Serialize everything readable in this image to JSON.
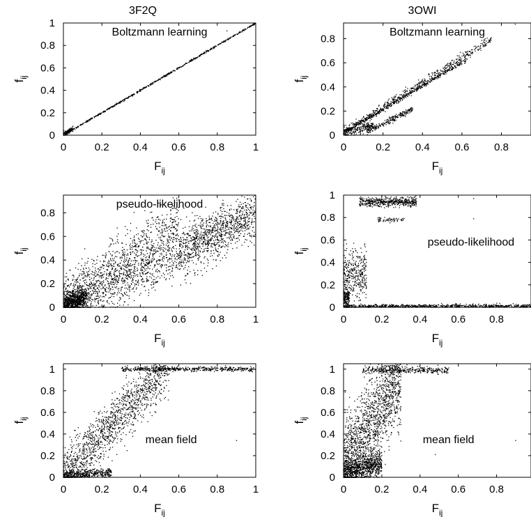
{
  "columns": [
    "3F2Q",
    "3OWI"
  ],
  "chart_data": [
    {
      "type": "scatter",
      "protein": "3F2Q",
      "annotation": "Boltzmann learning",
      "xlabel": "F",
      "xlabel_sub": "ij",
      "ylabel": "f",
      "ylabel_sub": "ij",
      "xlim": [
        0,
        1
      ],
      "ylim": [
        0,
        1
      ],
      "xticks": [
        "0",
        "0.2",
        "0.4",
        "0.6",
        "0.8",
        "1"
      ],
      "yticks": [
        "0",
        "0.2",
        "0.4",
        "0.6",
        "0.8",
        "1"
      ],
      "annotation_anchor": "top-center",
      "clusters": [
        {
          "x": [
            0.0,
            1.0
          ],
          "slope": 1.0,
          "intercept": 0.0,
          "spread": 0.004,
          "n": 600
        },
        {
          "x": [
            0.0,
            0.05
          ],
          "slope": 1.0,
          "intercept": 0.01,
          "spread": 0.012,
          "n": 120
        }
      ],
      "points": [
        [
          0.85,
          0.93
        ]
      ]
    },
    {
      "type": "scatter",
      "protein": "3OWI",
      "annotation": "Boltzmann learning",
      "xlabel": "F",
      "xlabel_sub": "ij",
      "ylabel": "f",
      "ylabel_sub": "ij",
      "xlim": [
        0,
        0.95
      ],
      "ylim": [
        0,
        0.93
      ],
      "xticks": [
        "0",
        "0.2",
        "0.4",
        "0.6",
        "0.8"
      ],
      "yticks": [
        "0",
        "0.2",
        "0.4",
        "0.6",
        "0.8"
      ],
      "annotation_anchor": "top-center",
      "clusters": [
        {
          "x": [
            0.0,
            0.62
          ],
          "slope": 0.97,
          "intercept": 0.02,
          "spread": 0.008,
          "n": 450
        },
        {
          "x": [
            0.0,
            0.75
          ],
          "slope": 1.02,
          "intercept": 0.03,
          "spread": 0.018,
          "n": 500
        },
        {
          "x": [
            0.12,
            0.35
          ],
          "slope": 0.82,
          "intercept": -0.07,
          "spread": 0.012,
          "n": 220
        },
        {
          "x": [
            0.0,
            0.15
          ],
          "slope": 0.4,
          "intercept": 0.02,
          "spread": 0.02,
          "n": 220
        }
      ],
      "points": [
        [
          0.87,
          0.92
        ]
      ]
    },
    {
      "type": "scatter",
      "protein": "3F2Q",
      "annotation": "pseudo-likelihood",
      "xlabel": "F",
      "xlabel_sub": "ij",
      "ylabel": "f",
      "ylabel_sub": "ij",
      "xlim": [
        0,
        1
      ],
      "ylim": [
        0,
        0.95
      ],
      "xticks": [
        "0",
        "0.2",
        "0.4",
        "0.6",
        "0.8",
        "1"
      ],
      "yticks": [
        "0",
        "0.2",
        "0.4",
        "0.6",
        "0.8"
      ],
      "annotation_anchor": "top-center",
      "clusters": [
        {
          "x": [
            0.0,
            1.0
          ],
          "slope": 0.75,
          "intercept": 0.0,
          "spread": 0.1,
          "n": 1400
        },
        {
          "x": [
            0.0,
            0.6
          ],
          "slope": 1.1,
          "intercept": 0.05,
          "spread": 0.12,
          "n": 900
        },
        {
          "x": [
            0.0,
            0.12
          ],
          "slope": 0.6,
          "intercept": 0.02,
          "spread": 0.04,
          "n": 700
        },
        {
          "x": [
            0.6,
            1.0
          ],
          "slope": 0.9,
          "intercept": -0.05,
          "spread": 0.09,
          "n": 500
        }
      ],
      "points": []
    },
    {
      "type": "scatter",
      "protein": "3OWI",
      "annotation": "pseudo-likelihood",
      "xlabel": "F",
      "xlabel_sub": "ij",
      "ylabel": "f",
      "ylabel_sub": "ij",
      "xlim": [
        0,
        0.98
      ],
      "ylim": [
        0,
        1
      ],
      "xticks": [
        "0",
        "0.2",
        "0.4",
        "0.6",
        "0.8"
      ],
      "yticks": [
        "0",
        "0.2",
        "0.4",
        "0.6",
        "0.8",
        "1"
      ],
      "annotation_anchor": "middle-right",
      "clusters": [
        {
          "x": [
            0.0,
            0.98
          ],
          "slope": 0.0,
          "intercept": 0.01,
          "spread": 0.008,
          "n": 700
        },
        {
          "x": [
            0.08,
            0.38
          ],
          "slope": 0.0,
          "intercept": 0.94,
          "spread": 0.02,
          "n": 500
        },
        {
          "x": [
            0.18,
            0.32
          ],
          "slope": 0.0,
          "intercept": 0.78,
          "spread": 0.012,
          "n": 60
        },
        {
          "x": [
            0.0,
            0.12
          ],
          "slope": 0.0,
          "intercept": 0.3,
          "spread": 0.11,
          "n": 350
        },
        {
          "x": [
            0.0,
            0.03
          ],
          "slope": 0.0,
          "intercept": 0.08,
          "spread": 0.05,
          "n": 150
        }
      ],
      "points": [
        [
          0.68,
          0.97
        ],
        [
          0.68,
          0.79
        ]
      ]
    },
    {
      "type": "scatter",
      "protein": "3F2Q",
      "annotation": "mean field",
      "xlabel": "F",
      "xlabel_sub": "ij",
      "ylabel": "f",
      "ylabel_sub": "ij",
      "xlim": [
        0,
        1
      ],
      "ylim": [
        0,
        1.05
      ],
      "xticks": [
        "0",
        "0.2",
        "0.4",
        "0.6",
        "0.8",
        "1"
      ],
      "yticks": [
        "0",
        "0.2",
        "0.4",
        "0.6",
        "0.8",
        "1"
      ],
      "annotation_anchor": "middle-center",
      "clusters": [
        {
          "x": [
            0.0,
            0.55
          ],
          "slope": 1.9,
          "intercept": 0.0,
          "spread": 0.12,
          "n": 1400
        },
        {
          "x": [
            0.3,
            1.0
          ],
          "slope": 0.0,
          "intercept": 1.0,
          "spread": 0.01,
          "n": 500
        },
        {
          "x": [
            0.0,
            0.25
          ],
          "slope": 0.1,
          "intercept": 0.02,
          "spread": 0.02,
          "n": 400
        }
      ],
      "points": [
        [
          0.9,
          0.34
        ]
      ]
    },
    {
      "type": "scatter",
      "protein": "3OWI",
      "annotation": "mean field",
      "xlabel": "F",
      "xlabel_sub": "ij",
      "ylabel": "f",
      "ylabel_sub": "ij",
      "xlim": [
        0,
        0.98
      ],
      "ylim": [
        0,
        1.05
      ],
      "xticks": [
        "0",
        "0.2",
        "0.4",
        "0.6",
        "0.8"
      ],
      "yticks": [
        "0",
        "0.2",
        "0.4",
        "0.6",
        "0.8",
        "1"
      ],
      "annotation_anchor": "middle-center",
      "clusters": [
        {
          "x": [
            0.0,
            0.3
          ],
          "slope": 2.8,
          "intercept": 0.1,
          "spread": 0.2,
          "n": 1500
        },
        {
          "x": [
            0.0,
            0.2
          ],
          "slope": 0.4,
          "intercept": 0.05,
          "spread": 0.06,
          "n": 900
        },
        {
          "x": [
            0.1,
            0.55
          ],
          "slope": 0.0,
          "intercept": 0.99,
          "spread": 0.015,
          "n": 350
        }
      ],
      "points": [
        [
          0.9,
          0.34
        ],
        [
          0.48,
          0.21
        ]
      ]
    }
  ]
}
